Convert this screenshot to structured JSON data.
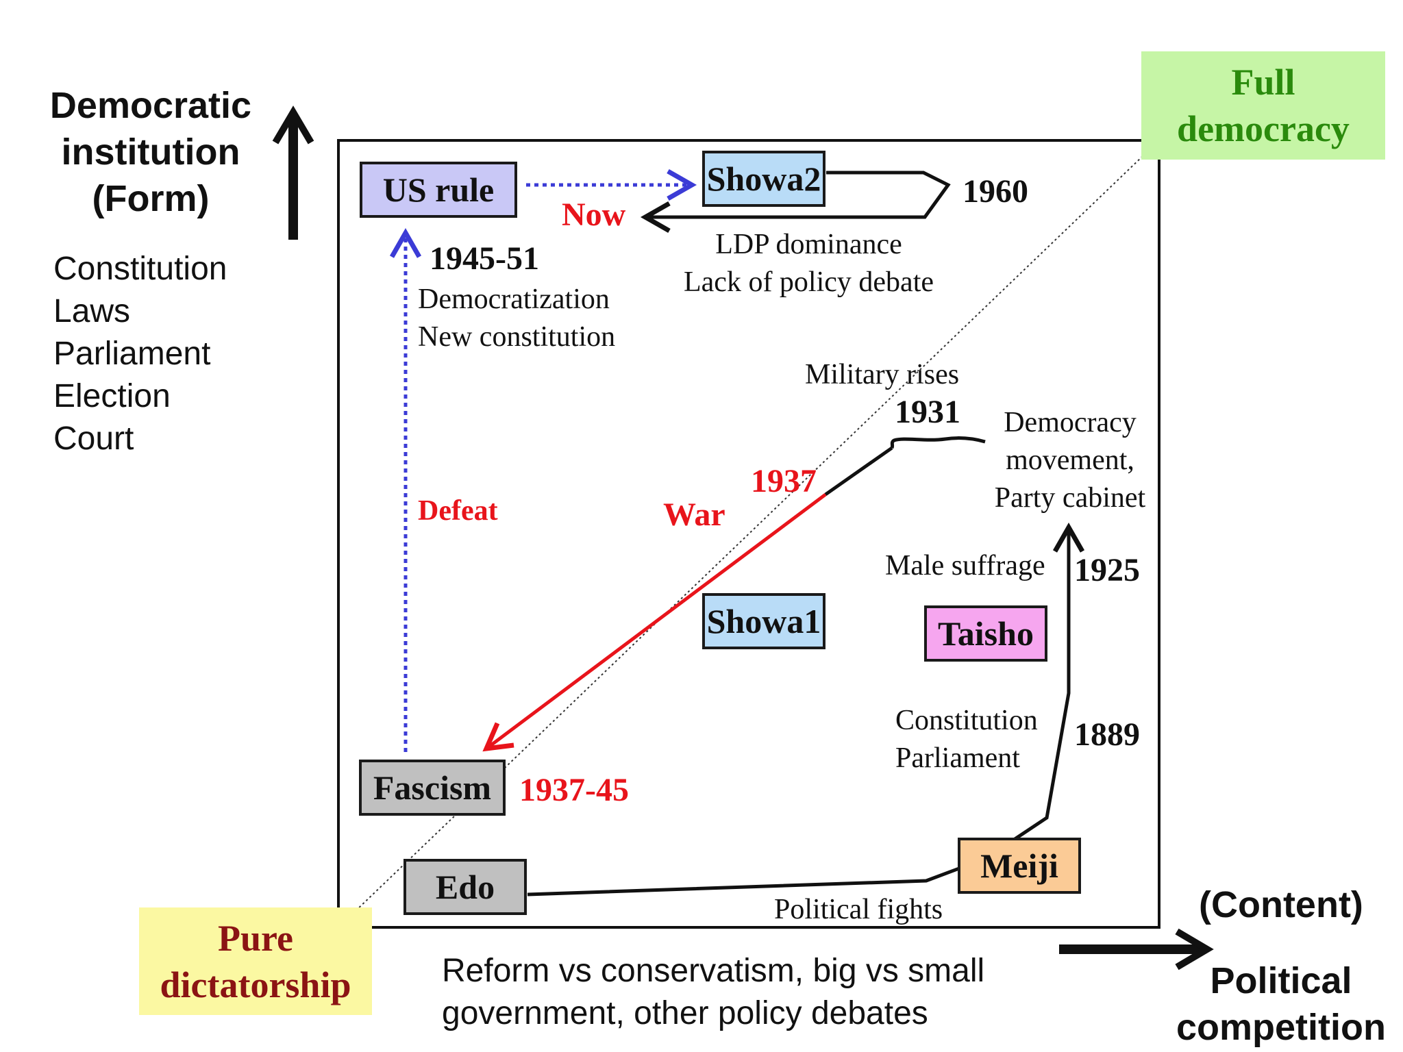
{
  "y_axis": {
    "title_lines": [
      "Democratic",
      "institution",
      "(Form)"
    ],
    "items": [
      "Constitution",
      "Laws",
      "Parliament",
      "Election",
      "Court"
    ]
  },
  "x_axis": {
    "description_lines": [
      "Reform vs conservatism, big vs small",
      "government, other policy debates"
    ],
    "content_label": "(Content)",
    "title_lines": [
      "Political",
      "competition"
    ]
  },
  "corners": {
    "full_democracy": [
      "Full",
      "democracy"
    ],
    "pure_dictatorship": [
      "Pure",
      "dictatorship"
    ]
  },
  "eras": {
    "us_rule": "US rule",
    "showa2": "Showa2",
    "showa1": "Showa1",
    "taisho": "Taisho",
    "fascism": "Fascism",
    "edo": "Edo",
    "meiji": "Meiji"
  },
  "era_colors": {
    "us_rule": "#c9c8f6",
    "showa2": "#b9dcf7",
    "showa1": "#b9dcf7",
    "taisho": "#f6a6ef",
    "fascism": "#c0c0c0",
    "edo": "#c0c0c0",
    "meiji": "#fbcb96"
  },
  "annotations": {
    "now": "Now",
    "year_1960": "1960",
    "ldp": [
      "LDP dominance",
      "Lack of policy debate"
    ],
    "year_1945_51": "1945-51",
    "democratization": [
      "Democratization",
      "New constitution"
    ],
    "military_rises": "Military rises",
    "year_1931": "1931",
    "democracy_movement": [
      "Democracy",
      "movement,",
      "Party cabinet"
    ],
    "year_1937": "1937",
    "war": "War",
    "defeat": "Defeat",
    "male_suffrage": "Male suffrage",
    "year_1925": "1925",
    "constitution_parliament": [
      "Constitution",
      "Parliament"
    ],
    "year_1889": "1889",
    "year_1937_45": "1937-45",
    "political_fights": "Political fights"
  },
  "colors": {
    "red": "#e8141b",
    "blue_dotted": "#3b3bd6",
    "black": "#111111"
  },
  "icons": [
    "arrow-up-icon",
    "arrow-right-icon"
  ]
}
